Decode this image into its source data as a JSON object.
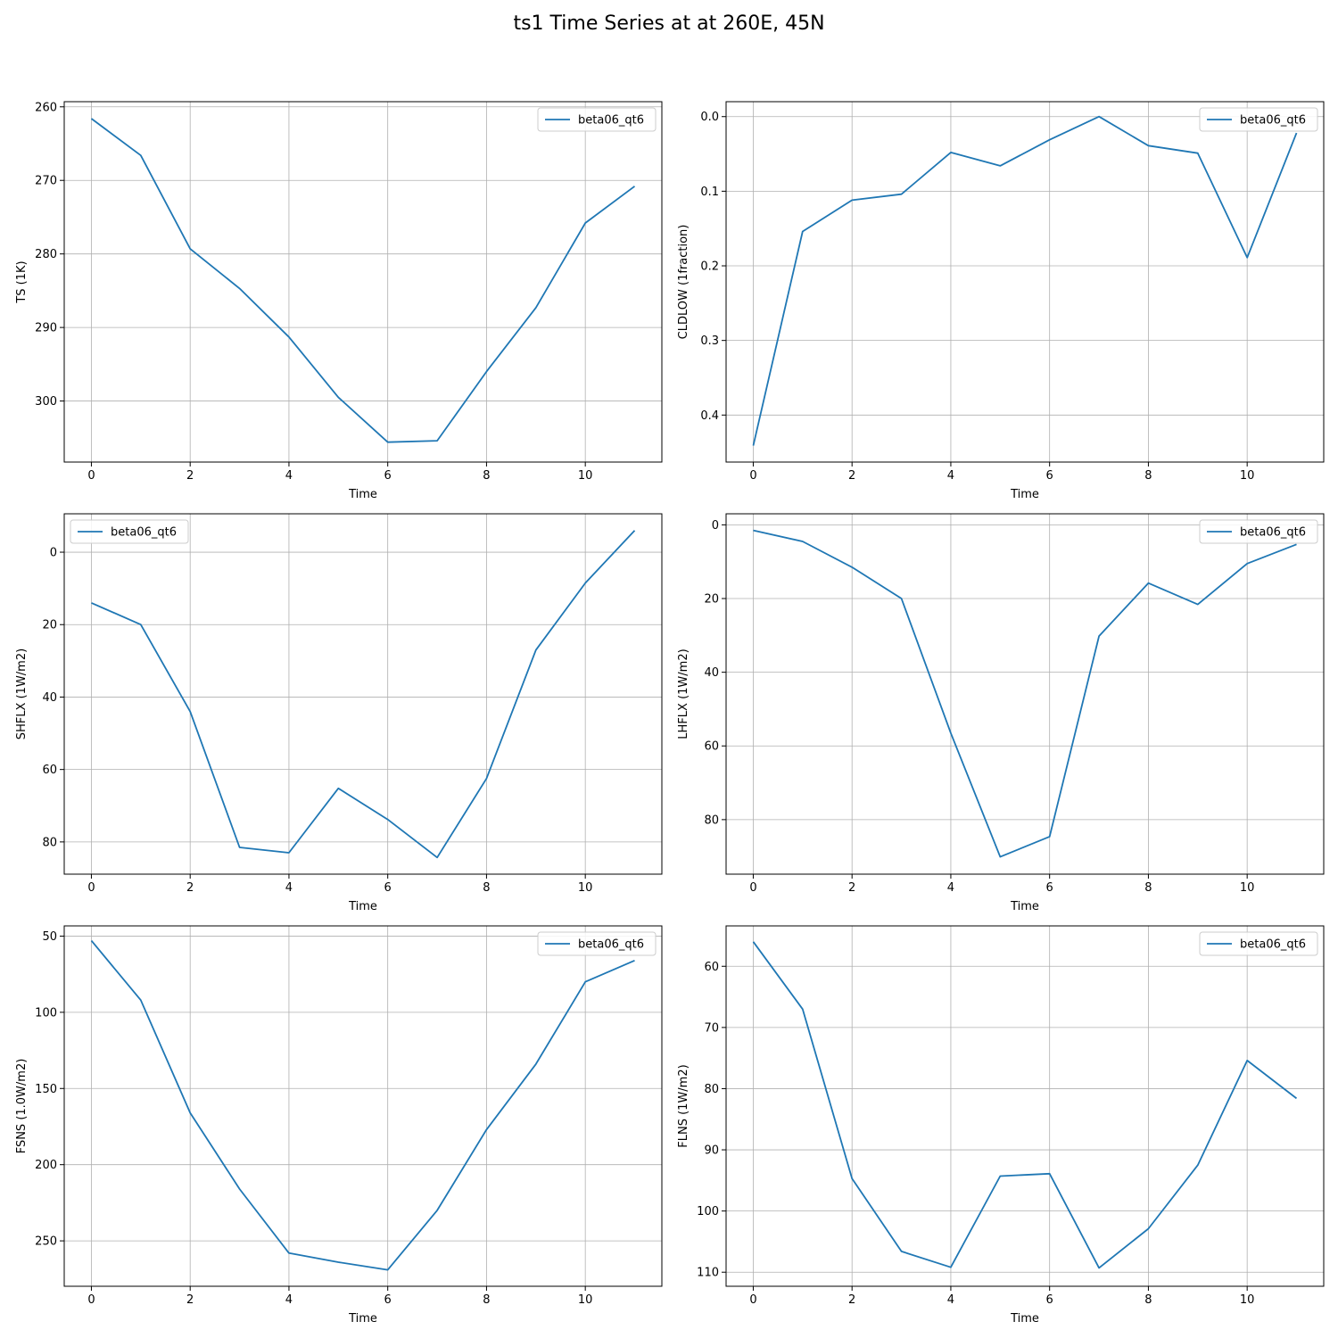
{
  "figure": {
    "title": "ts1 Time Series at at 260E, 45N"
  },
  "colors": {
    "line": "#1f77b4",
    "grid": "#b0b0b0",
    "axes": "#000000"
  },
  "chart_data": [
    {
      "type": "line",
      "xlabel": "Time",
      "ylabel": "TS (1K)",
      "xlim": [
        -0.55,
        11.55
      ],
      "ylim": [
        308.3,
        259.3
      ],
      "inverted_y": true,
      "xticks": [
        0,
        2,
        4,
        6,
        8,
        10
      ],
      "yticks": [
        260,
        270,
        280,
        290,
        300
      ],
      "grid": true,
      "legend": "top-right",
      "series": [
        {
          "name": "beta06_qt6",
          "x": [
            0,
            1,
            2,
            3,
            4,
            5,
            6,
            7,
            8,
            9,
            10,
            11
          ],
          "values": [
            261.6,
            266.6,
            279.3,
            284.7,
            291.3,
            299.5,
            305.6,
            305.4,
            296.0,
            287.3,
            275.8,
            270.8
          ]
        }
      ]
    },
    {
      "type": "line",
      "xlabel": "Time",
      "ylabel": "CLDLOW (1fraction)",
      "xlim": [
        -0.55,
        11.55
      ],
      "ylim": [
        0.463,
        -0.02
      ],
      "inverted_y": true,
      "xticks": [
        0,
        2,
        4,
        6,
        8,
        10
      ],
      "yticks": [
        0.0,
        0.1,
        0.2,
        0.3,
        0.4
      ],
      "ytick_labels": [
        "0.0",
        "0.1",
        "0.2",
        "0.3",
        "0.4"
      ],
      "grid": true,
      "legend": "top-right",
      "series": [
        {
          "name": "beta06_qt6",
          "x": [
            0,
            1,
            2,
            3,
            4,
            5,
            6,
            7,
            8,
            9,
            10,
            11
          ],
          "values": [
            0.441,
            0.154,
            0.112,
            0.104,
            0.048,
            0.066,
            0.031,
            0.0,
            0.039,
            0.049,
            0.189,
            0.022
          ]
        }
      ]
    },
    {
      "type": "line",
      "xlabel": "Time",
      "ylabel": "SHFLX (1W/m2)",
      "xlim": [
        -0.55,
        11.55
      ],
      "ylim": [
        88.9,
        -10.6
      ],
      "inverted_y": true,
      "xticks": [
        0,
        2,
        4,
        6,
        8,
        10
      ],
      "yticks": [
        0,
        20,
        40,
        60,
        80
      ],
      "grid": true,
      "legend": "top-left",
      "series": [
        {
          "name": "beta06_qt6",
          "x": [
            0,
            1,
            2,
            3,
            4,
            5,
            6,
            7,
            8,
            9,
            10,
            11
          ],
          "values": [
            14,
            20,
            44,
            81.5,
            83,
            65.2,
            73.8,
            84.3,
            62.5,
            27,
            8.5,
            -6
          ]
        }
      ]
    },
    {
      "type": "line",
      "xlabel": "Time",
      "ylabel": "LHFLX (1W/m2)",
      "xlim": [
        -0.55,
        11.55
      ],
      "ylim": [
        94.8,
        -3.0
      ],
      "inverted_y": true,
      "xticks": [
        0,
        2,
        4,
        6,
        8,
        10
      ],
      "yticks": [
        0,
        20,
        40,
        60,
        80
      ],
      "grid": true,
      "legend": "top-right",
      "series": [
        {
          "name": "beta06_qt6",
          "x": [
            0,
            1,
            2,
            3,
            4,
            5,
            6,
            7,
            8,
            9,
            10,
            11
          ],
          "values": [
            1.5,
            4.5,
            11.5,
            20,
            56.5,
            90.1,
            84.6,
            30.2,
            15.8,
            21.6,
            10.5,
            5.3
          ]
        }
      ]
    },
    {
      "type": "line",
      "xlabel": "Time",
      "ylabel": "FSNS (1.0W/m2)",
      "xlim": [
        -0.55,
        11.55
      ],
      "ylim": [
        279.8,
        43.3
      ],
      "inverted_y": true,
      "xticks": [
        0,
        2,
        4,
        6,
        8,
        10
      ],
      "yticks": [
        50,
        100,
        150,
        200,
        250
      ],
      "grid": true,
      "legend": "top-right",
      "series": [
        {
          "name": "beta06_qt6",
          "x": [
            0,
            1,
            2,
            3,
            4,
            5,
            6,
            7,
            8,
            9,
            10,
            11
          ],
          "values": [
            53,
            92,
            166,
            216,
            258,
            264,
            269,
            230,
            177,
            134,
            80,
            66
          ]
        }
      ]
    },
    {
      "type": "line",
      "xlabel": "Time",
      "ylabel": "FLNS (1W/m2)",
      "xlim": [
        -0.55,
        11.55
      ],
      "ylim": [
        112.3,
        53.4
      ],
      "inverted_y": true,
      "xticks": [
        0,
        2,
        4,
        6,
        8,
        10
      ],
      "yticks": [
        60,
        70,
        80,
        90,
        100,
        110
      ],
      "grid": true,
      "legend": "top-right",
      "series": [
        {
          "name": "beta06_qt6",
          "x": [
            0,
            1,
            2,
            3,
            4,
            5,
            6,
            7,
            8,
            9,
            10,
            11
          ],
          "values": [
            56.0,
            67.0,
            94.7,
            106.6,
            109.2,
            94.3,
            93.9,
            109.3,
            102.9,
            92.5,
            75.4,
            81.6
          ]
        }
      ]
    }
  ]
}
